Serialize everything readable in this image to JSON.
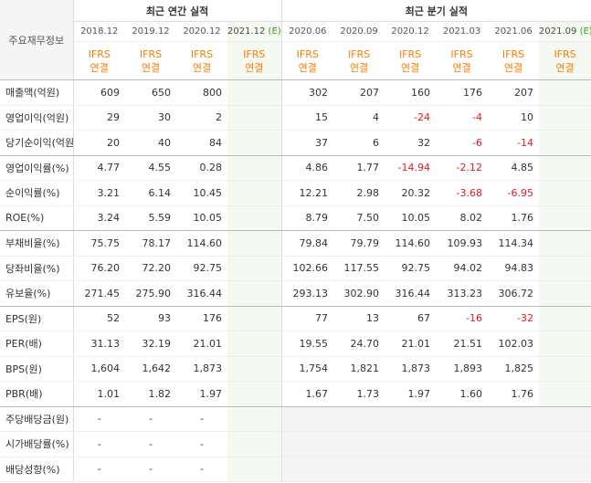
{
  "header": {
    "label_title": "주요재무정보",
    "annual_title": "최근 연간 실적",
    "quarter_title": "최근 분기 실적",
    "ifrs_line1": "IFRS",
    "ifrs_line2": "연결",
    "estimate_mark": "(E)"
  },
  "periods": {
    "annual": [
      "2018.12",
      "2019.12",
      "2020.12",
      "2021.12"
    ],
    "quarter": [
      "2020.06",
      "2020.09",
      "2020.12",
      "2021.03",
      "2021.06",
      "2021.09"
    ]
  },
  "rows": [
    {
      "label": "매출액(억원)",
      "annual": [
        "609",
        "650",
        "800",
        ""
      ],
      "quarter": [
        "302",
        "207",
        "160",
        "176",
        "207",
        ""
      ]
    },
    {
      "label": "영업이익(억원)",
      "annual": [
        "29",
        "30",
        "2",
        ""
      ],
      "quarter": [
        "15",
        "4",
        "-24",
        "-4",
        "10",
        ""
      ]
    },
    {
      "label": "당기순이익(억원)",
      "annual": [
        "20",
        "40",
        "84",
        ""
      ],
      "quarter": [
        "37",
        "6",
        "32",
        "-6",
        "-14",
        ""
      ]
    },
    {
      "label": "영업이익률(%)",
      "annual": [
        "4.77",
        "4.55",
        "0.28",
        ""
      ],
      "quarter": [
        "4.86",
        "1.77",
        "-14.94",
        "-2.12",
        "4.85",
        ""
      ]
    },
    {
      "label": "순이익률(%)",
      "annual": [
        "3.21",
        "6.14",
        "10.45",
        ""
      ],
      "quarter": [
        "12.21",
        "2.98",
        "20.32",
        "-3.68",
        "-6.95",
        ""
      ]
    },
    {
      "label": "ROE(%)",
      "annual": [
        "3.24",
        "5.59",
        "10.05",
        ""
      ],
      "quarter": [
        "8.79",
        "7.50",
        "10.05",
        "8.02",
        "1.76",
        ""
      ]
    },
    {
      "label": "부채비율(%)",
      "annual": [
        "75.75",
        "78.17",
        "114.60",
        ""
      ],
      "quarter": [
        "79.84",
        "79.79",
        "114.60",
        "109.93",
        "114.34",
        ""
      ]
    },
    {
      "label": "당좌비율(%)",
      "annual": [
        "76.20",
        "72.20",
        "92.75",
        ""
      ],
      "quarter": [
        "102.66",
        "117.55",
        "92.75",
        "94.02",
        "94.83",
        ""
      ]
    },
    {
      "label": "유보율(%)",
      "annual": [
        "271.45",
        "275.90",
        "316.44",
        ""
      ],
      "quarter": [
        "293.13",
        "302.90",
        "316.44",
        "313.23",
        "306.72",
        ""
      ]
    },
    {
      "label": "EPS(원)",
      "annual": [
        "52",
        "93",
        "176",
        ""
      ],
      "quarter": [
        "77",
        "13",
        "67",
        "-16",
        "-32",
        ""
      ]
    },
    {
      "label": "PER(배)",
      "annual": [
        "31.13",
        "32.19",
        "21.01",
        ""
      ],
      "quarter": [
        "19.55",
        "24.70",
        "21.01",
        "21.51",
        "102.03",
        ""
      ]
    },
    {
      "label": "BPS(원)",
      "annual": [
        "1,604",
        "1,642",
        "1,873",
        ""
      ],
      "quarter": [
        "1,754",
        "1,821",
        "1,873",
        "1,893",
        "1,825",
        ""
      ]
    },
    {
      "label": "PBR(배)",
      "annual": [
        "1.01",
        "1.82",
        "1.97",
        ""
      ],
      "quarter": [
        "1.67",
        "1.73",
        "1.97",
        "1.60",
        "1.76",
        ""
      ]
    },
    {
      "label": "주당배당금(원)",
      "annual": [
        "-",
        "-",
        "-",
        ""
      ],
      "quarter": [
        "",
        "",
        "",
        "",
        "",
        ""
      ]
    },
    {
      "label": "시가배당률(%)",
      "annual": [
        "-",
        "-",
        "-",
        ""
      ],
      "quarter": [
        "",
        "",
        "",
        "",
        "",
        ""
      ]
    },
    {
      "label": "배당성향(%)",
      "annual": [
        "-",
        "-",
        "-",
        ""
      ],
      "quarter": [
        "",
        "",
        "",
        "",
        "",
        ""
      ]
    }
  ],
  "colors": {
    "ifrs": "#ff7b00",
    "negative": "#e8181d",
    "estimate_bg": "#f4f9f1",
    "estimate_mark": "#3a9d23",
    "label_bg": "#f5f5f5"
  }
}
